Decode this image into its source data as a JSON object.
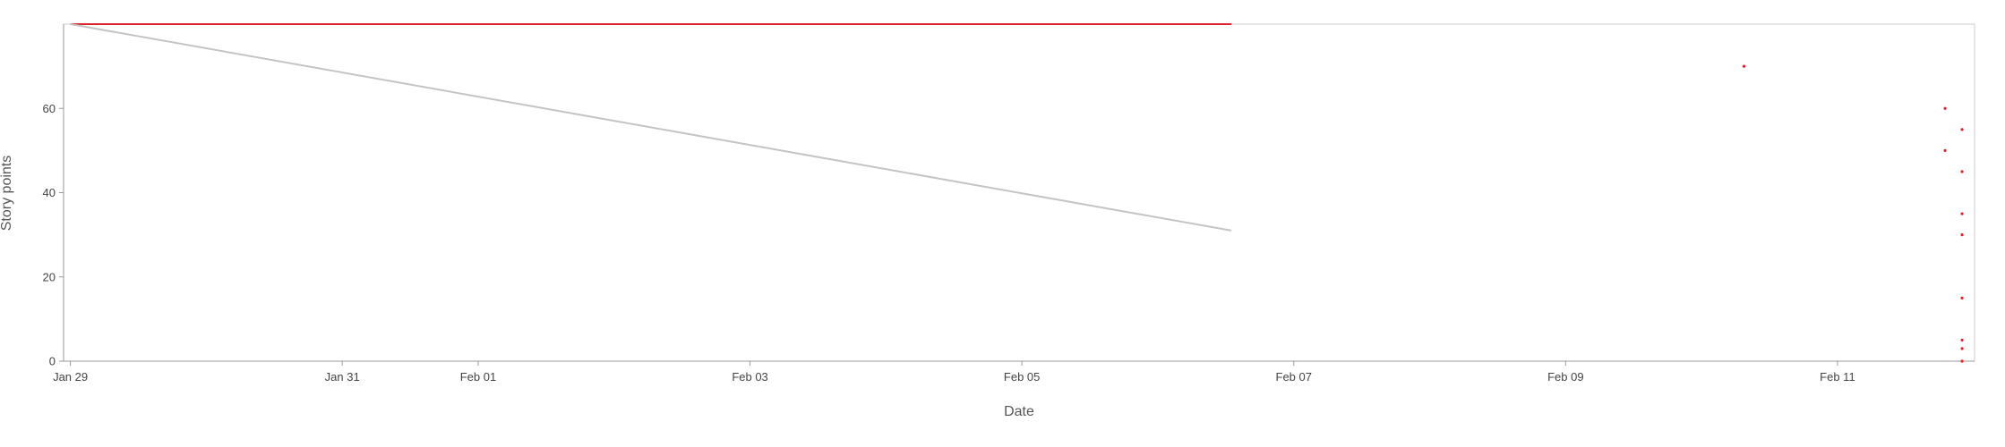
{
  "chart_data": {
    "type": "line",
    "title": "",
    "xlabel": "Date",
    "ylabel": "Story points",
    "xlim": [
      "2025-01-29",
      "2025-02-11T23:00"
    ],
    "ylim": [
      0,
      80
    ],
    "x_ticks": [
      {
        "date": "2025-01-29",
        "label": "Jan 29"
      },
      {
        "date": "2025-01-31",
        "label": "Jan 31"
      },
      {
        "date": "2025-02-01",
        "label": "Feb 01"
      },
      {
        "date": "2025-02-03",
        "label": "Feb 03"
      },
      {
        "date": "2025-02-05",
        "label": "Feb 05"
      },
      {
        "date": "2025-02-07",
        "label": "Feb 07"
      },
      {
        "date": "2025-02-09",
        "label": "Feb 09"
      },
      {
        "date": "2025-02-11",
        "label": "Feb 11"
      }
    ],
    "y_ticks": [
      0,
      20,
      40,
      60
    ],
    "grid": false,
    "series": [
      {
        "kind": "line",
        "color": "#d9262c",
        "points": [
          {
            "x": "2025-01-29T00:00",
            "y": 80
          },
          {
            "x": "2025-02-06T13:00",
            "y": 80
          }
        ]
      },
      {
        "kind": "line",
        "color": "#c4c4c4",
        "points": [
          {
            "x": "2025-01-29T00:00",
            "y": 80
          },
          {
            "x": "2025-02-06T13:00",
            "y": 31
          }
        ]
      },
      {
        "kind": "scatter",
        "color": "#d9262c",
        "points": [
          {
            "x": "2025-02-10T07:30",
            "y": 70
          },
          {
            "x": "2025-02-11T19:00",
            "y": 60
          },
          {
            "x": "2025-02-11T19:00",
            "y": 50
          },
          {
            "x": "2025-02-11T22:00",
            "y": 55
          },
          {
            "x": "2025-02-11T22:00",
            "y": 45
          },
          {
            "x": "2025-02-11T22:00",
            "y": 35
          },
          {
            "x": "2025-02-11T22:00",
            "y": 30
          },
          {
            "x": "2025-02-11T22:00",
            "y": 15
          },
          {
            "x": "2025-02-11T22:00",
            "y": 5
          },
          {
            "x": "2025-02-11T22:00",
            "y": 3
          },
          {
            "x": "2025-02-11T22:00",
            "y": 0
          }
        ]
      }
    ]
  }
}
